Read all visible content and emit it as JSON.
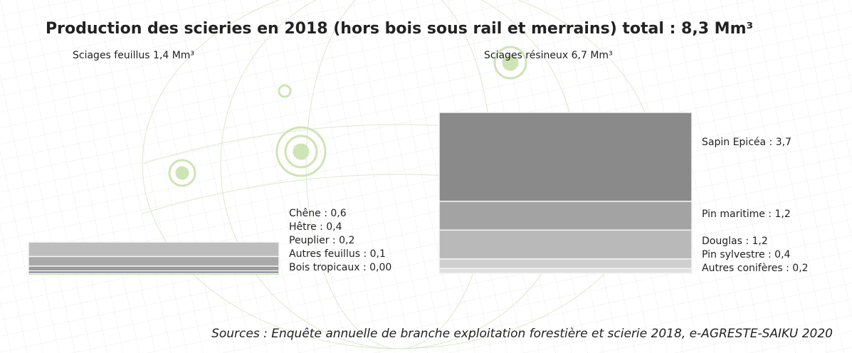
{
  "header": {
    "title": "Production des scieries en 2018 (hors bois sous rail et merrains) total : 8,3 Mm³",
    "source": "Sources :  Enquête annuelle de branche exploitation forestière et scierie 2018, e-AGRESTE-SAIKU 2020"
  },
  "chart_data": [
    {
      "type": "stacked-bar",
      "title": "Sciages feuillus 1,4 Mm³",
      "categories": [
        "Chêne",
        "Hêtre",
        "Peuplier",
        "Autres feuillus",
        "Bois tropicaux"
      ],
      "values": [
        0.6,
        0.4,
        0.2,
        0.1,
        0.0
      ],
      "value_labels": [
        "Chêne : 0,6",
        "Hêtre : 0,4",
        "Peuplier : 0,2",
        "Autres feuillus : 0,1",
        "Bois tropicaux : 0,00"
      ],
      "colors": [
        "#bdbdbd",
        "#a9a9a9",
        "#999999",
        "#6f7480",
        "#8fc46a"
      ]
    },
    {
      "type": "stacked-bar",
      "title": "Sciages résineux 6,7 Mm³",
      "categories": [
        "Sapin Epicéa",
        "Pin maritime",
        "Douglas",
        "Pin sylvestre",
        "Autres conifères"
      ],
      "values": [
        3.7,
        1.2,
        1.2,
        0.4,
        0.2
      ],
      "value_labels": [
        "Sapin Epicéa : 3,7",
        "Pin maritime : 1,2",
        "Douglas : 1,2",
        "Pin sylvestre : 0,4",
        "Autres conifères : 0,2"
      ],
      "colors": [
        "#8a8a8a",
        "#a3a3a3",
        "#b9b9b9",
        "#cfcfcf",
        "#e0e0e0"
      ]
    }
  ]
}
